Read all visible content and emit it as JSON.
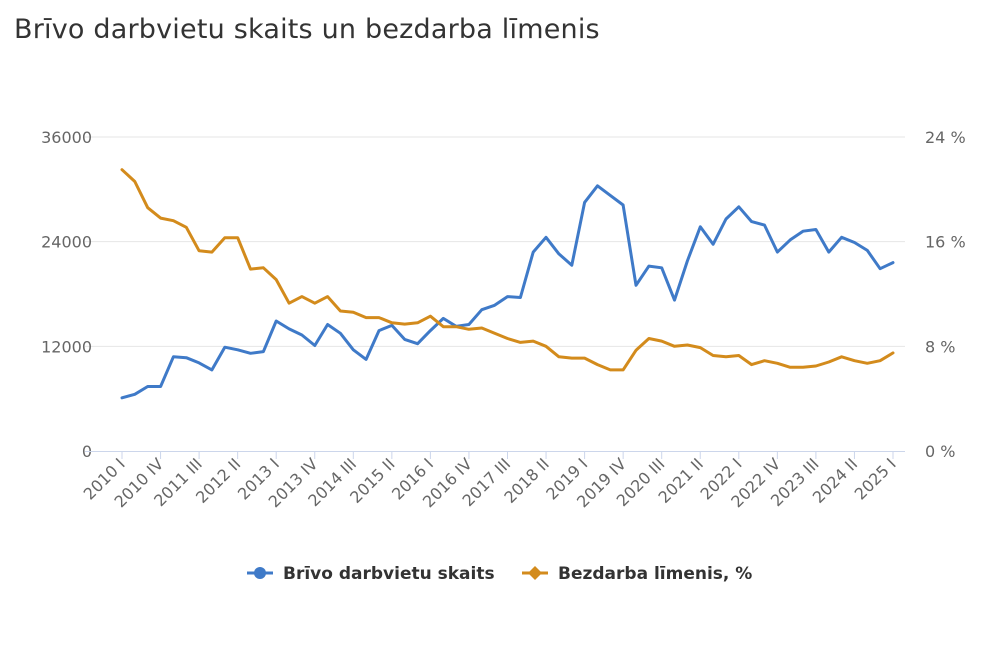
{
  "title": "Brīvo darbvietu skaits un bezdarba līmenis",
  "chart_data": {
    "type": "line",
    "title": "Brīvo darbvietu skaits un bezdarba līmenis",
    "x_tick_labels": [
      "2010 I",
      "2010 IV",
      "2011 III",
      "2012 II",
      "2013 I",
      "2013 IV",
      "2014 III",
      "2015 II",
      "2016 I",
      "2016 IV",
      "2017 III",
      "2018 II",
      "2019 I",
      "2019 IV",
      "2020 III",
      "2021 II",
      "2022 I",
      "2022 IV",
      "2023 III",
      "2024 II",
      "2025 I"
    ],
    "y_left": {
      "ticks": [
        "0",
        "12000",
        "24000",
        "36000"
      ],
      "ylim": [
        0,
        36000
      ]
    },
    "y_right": {
      "ticks": [
        "0 %",
        "8 %",
        "16 %",
        "24 %"
      ],
      "ylim": [
        0,
        24
      ]
    },
    "grid": true,
    "legend_position": "bottom",
    "series": [
      {
        "name": "Brīvo darbvietu skaits",
        "axis": "left",
        "color": "#3f7ac8",
        "marker": "circle",
        "values": [
          6100,
          6500,
          7400,
          7400,
          10800,
          10700,
          10100,
          9300,
          11900,
          11600,
          11200,
          11400,
          14900,
          14000,
          13300,
          12100,
          14500,
          13500,
          11600,
          10500,
          13800,
          14400,
          12800,
          12300,
          13800,
          15200,
          14300,
          14500,
          16200,
          16700,
          17700,
          17600,
          22800,
          24500,
          22600,
          21300,
          28500,
          30400,
          29300,
          28200,
          19000,
          21200,
          21000,
          17300,
          21800,
          25700,
          23700,
          26600,
          28000,
          26300,
          25900,
          22800,
          24200,
          25200,
          25400,
          22800,
          24500,
          23900,
          23000,
          20900,
          21600
        ]
      },
      {
        "name": "Bezdarba līmenis, %",
        "axis": "right",
        "color": "#d38b1c",
        "marker": "diamond",
        "values": [
          21.5,
          20.6,
          18.6,
          17.8,
          17.6,
          17.1,
          15.3,
          15.2,
          16.3,
          16.3,
          13.9,
          14.0,
          13.1,
          11.3,
          11.8,
          11.3,
          11.8,
          10.7,
          10.6,
          10.2,
          10.2,
          9.8,
          9.7,
          9.8,
          10.3,
          9.5,
          9.5,
          9.3,
          9.4,
          9.0,
          8.6,
          8.3,
          8.4,
          8.0,
          7.2,
          7.1,
          7.1,
          6.6,
          6.2,
          6.2,
          7.7,
          8.6,
          8.4,
          8.0,
          8.1,
          7.9,
          7.3,
          7.2,
          7.3,
          6.6,
          6.9,
          6.7,
          6.4,
          6.4,
          6.5,
          6.8,
          7.2,
          6.9,
          6.7,
          6.9,
          7.5
        ]
      }
    ]
  }
}
